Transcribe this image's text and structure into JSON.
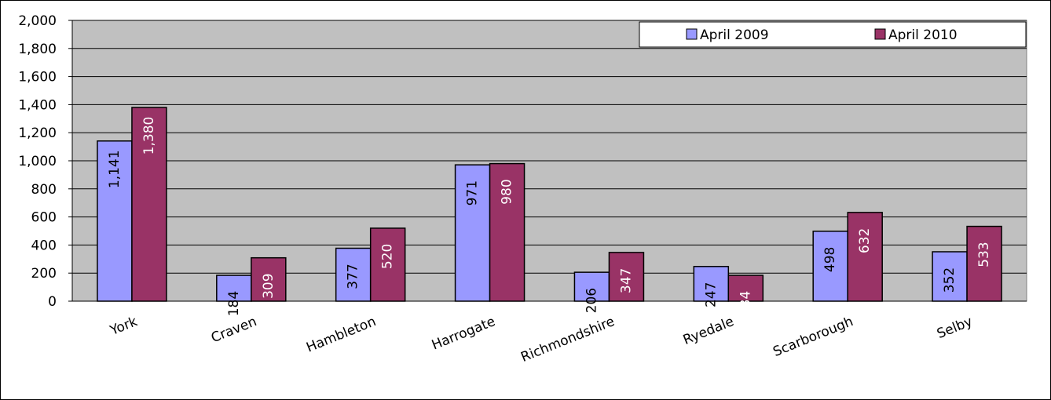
{
  "chart_data": {
    "type": "bar",
    "categories": [
      "York",
      "Craven",
      "Hambleton",
      "Harrogate",
      "Richmondshire",
      "Ryedale",
      "Scarborough",
      "Selby"
    ],
    "series": [
      {
        "name": "April 2009",
        "values": [
          1141,
          184,
          377,
          971,
          206,
          247,
          498,
          352
        ],
        "color": "#9999ff"
      },
      {
        "name": "April 2010",
        "values": [
          1380,
          309,
          520,
          980,
          347,
          184,
          632,
          533
        ],
        "color": "#993366"
      }
    ],
    "data_labels": [
      [
        "1,141",
        "184",
        "377",
        "971",
        "206",
        "247",
        "498",
        "352"
      ],
      [
        "1,380",
        "309",
        "520",
        "980",
        "347",
        "184",
        "632",
        "533"
      ]
    ],
    "y_ticks": [
      "0",
      "200",
      "400",
      "600",
      "800",
      "1,000",
      "1,200",
      "1,400",
      "1,600",
      "1,800",
      "2,000"
    ],
    "ylim": [
      0,
      2000
    ],
    "title": "",
    "xlabel": "",
    "ylabel": "",
    "grid": true,
    "legend_position": "top-right",
    "plot_background": "#c0c0c0"
  }
}
